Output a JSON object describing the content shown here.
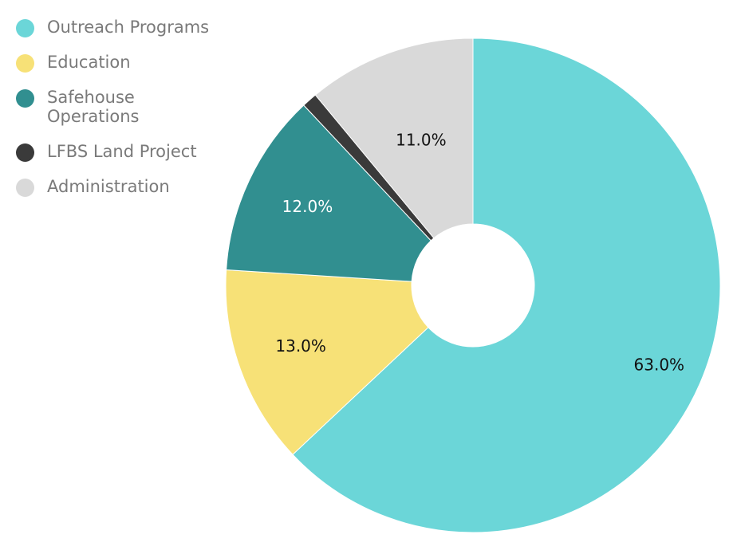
{
  "chart_data": {
    "type": "pie",
    "donut": true,
    "title": "",
    "legend_position": "top-left",
    "slices": [
      {
        "name": "Outreach Programs",
        "value": 63.0,
        "label": "63.0%",
        "color": "#6bd6d8",
        "label_color": "#111111"
      },
      {
        "name": "Education",
        "value": 13.0,
        "label": "13.0%",
        "color": "#f7e177",
        "label_color": "#111111"
      },
      {
        "name": "Safehouse Operations",
        "value": 12.0,
        "label": "12.0%",
        "color": "#318f90",
        "label_color": "#ffffff"
      },
      {
        "name": "LFBS Land Project",
        "value": 1.0,
        "label": "",
        "color": "#3a3a3a",
        "label_color": "#ffffff"
      },
      {
        "name": "Administration",
        "value": 11.0,
        "label": "11.0%",
        "color": "#d9d9d9",
        "label_color": "#111111"
      }
    ]
  },
  "legend": {
    "items": [
      {
        "label": "Outreach Programs",
        "color": "#6bd6d8"
      },
      {
        "label": "Education",
        "color": "#f7e177"
      },
      {
        "label": "Safehouse Operations",
        "color": "#318f90"
      },
      {
        "label": "LFBS Land Project",
        "color": "#3a3a3a"
      },
      {
        "label": "Administration",
        "color": "#d9d9d9"
      }
    ]
  }
}
